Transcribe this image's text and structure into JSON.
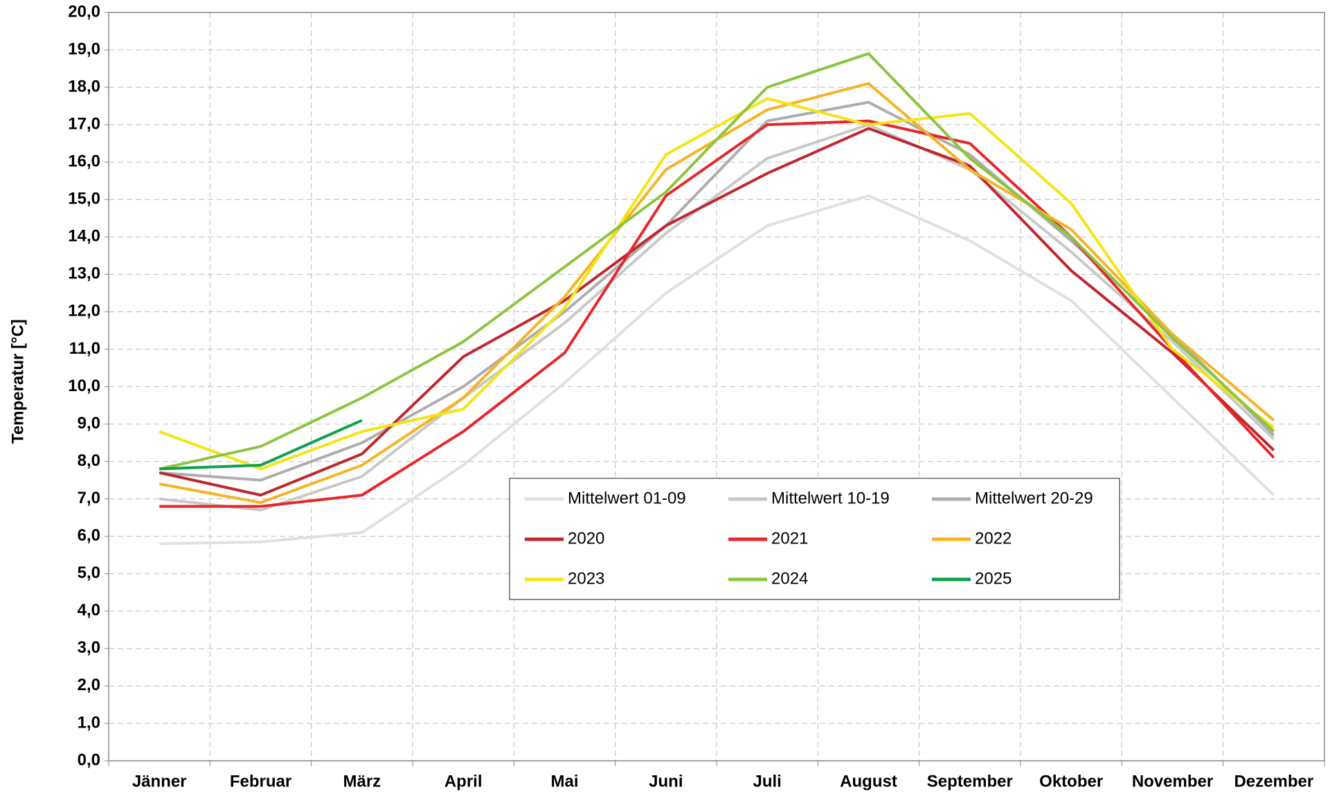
{
  "chart_data": {
    "type": "line",
    "y_label": "Temperatur [°C]",
    "categories": [
      "Jänner",
      "Februar",
      "März",
      "April",
      "Mai",
      "Juni",
      "Juli",
      "August",
      "September",
      "Oktober",
      "November",
      "Dezember"
    ],
    "ylim": [
      0,
      20
    ],
    "yticks": [
      {
        "value": 0,
        "label": "0,0"
      },
      {
        "value": 1,
        "label": "1,0"
      },
      {
        "value": 2,
        "label": "2,0"
      },
      {
        "value": 3,
        "label": "3,0"
      },
      {
        "value": 4,
        "label": "4,0"
      },
      {
        "value": 5,
        "label": "5,0"
      },
      {
        "value": 6,
        "label": "6,0"
      },
      {
        "value": 7,
        "label": "7,0"
      },
      {
        "value": 8,
        "label": "8,0"
      },
      {
        "value": 9,
        "label": "9,0"
      },
      {
        "value": 10,
        "label": "10,0"
      },
      {
        "value": 11,
        "label": "11,0"
      },
      {
        "value": 12,
        "label": "12,0"
      },
      {
        "value": 13,
        "label": "13,0"
      },
      {
        "value": 14,
        "label": "14,0"
      },
      {
        "value": 15,
        "label": "15,0"
      },
      {
        "value": 16,
        "label": "16,0"
      },
      {
        "value": 17,
        "label": "17,0"
      },
      {
        "value": 18,
        "label": "18,0"
      },
      {
        "value": 19,
        "label": "19,0"
      },
      {
        "value": 20,
        "label": "20,0"
      }
    ],
    "grid": true,
    "series": [
      {
        "name": "Mittelwert 01-09",
        "color": "#e0e0e0",
        "values": [
          5.8,
          5.85,
          6.1,
          7.9,
          10.1,
          12.5,
          14.3,
          15.1,
          13.9,
          12.3,
          9.7,
          7.1
        ]
      },
      {
        "name": "Mittelwert 10-19",
        "color": "#c8c8c8",
        "values": [
          7.0,
          6.7,
          7.6,
          9.7,
          11.7,
          14.1,
          16.1,
          17.0,
          15.8,
          13.6,
          11.2,
          8.6
        ]
      },
      {
        "name": "Mittelwert 20-29",
        "color": "#adadad",
        "values": [
          7.7,
          7.5,
          8.5,
          10.0,
          12.0,
          14.3,
          17.1,
          17.6,
          16.2,
          13.9,
          11.4,
          8.7
        ]
      },
      {
        "name": "2020",
        "color": "#c0262d",
        "values": [
          7.7,
          7.1,
          8.2,
          10.8,
          12.3,
          14.3,
          15.7,
          16.9,
          15.9,
          13.1,
          10.9,
          8.3
        ]
      },
      {
        "name": "2021",
        "color": "#e8262a",
        "values": [
          6.8,
          6.8,
          7.1,
          8.8,
          10.9,
          15.1,
          17.0,
          17.1,
          16.5,
          14.0,
          11.0,
          8.1
        ]
      },
      {
        "name": "2022",
        "color": "#f6b323",
        "values": [
          7.4,
          6.9,
          7.9,
          9.7,
          12.4,
          15.8,
          17.4,
          18.1,
          15.8,
          14.2,
          11.4,
          9.1
        ]
      },
      {
        "name": "2023",
        "color": "#f3e514",
        "values": [
          8.8,
          7.8,
          8.8,
          9.4,
          12.1,
          16.2,
          17.7,
          17.0,
          17.3,
          14.9,
          11.0,
          8.9
        ]
      },
      {
        "name": "2024",
        "color": "#8cc43f",
        "values": [
          7.8,
          8.4,
          9.7,
          11.2,
          13.2,
          15.2,
          18.0,
          18.9,
          16.1,
          14.0,
          11.3,
          8.8
        ]
      },
      {
        "name": "2025",
        "color": "#0ea14b",
        "values": [
          7.8,
          7.9,
          9.1,
          null,
          null,
          null,
          null,
          null,
          null,
          null,
          null,
          null
        ]
      }
    ]
  }
}
